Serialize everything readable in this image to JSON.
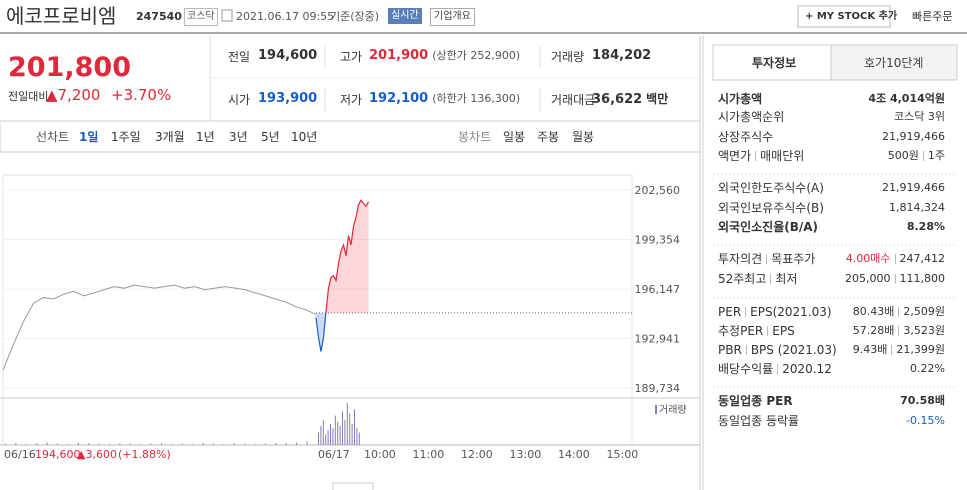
{
  "header": {
    "name": "에코프로비엠",
    "code": "247540",
    "market": "코스닥",
    "datetime": "2021.06.17 09:55",
    "basis": "기준(장중)",
    "realtime": "실시간",
    "company_info": "기업개요",
    "my_stock": "+ MY STOCK 추가",
    "quick_order": "빠른주문"
  },
  "quote": {
    "price": "201,800",
    "change_label": "전일대비",
    "change": "▲7,200",
    "change_rate": "+3.70%",
    "stats": [
      {
        "label": "전일",
        "value": "194,600"
      },
      {
        "label": "고가",
        "value": "201,900",
        "note": "(상한가 252,900)"
      },
      {
        "label": "거래량",
        "value": "184,202"
      },
      {
        "label": "시가",
        "value": "193,900"
      },
      {
        "label": "저가",
        "value": "192,100",
        "note": "(하한가 136,300)"
      },
      {
        "label": "거래대금",
        "value": "36,622",
        "unit": "백만"
      }
    ]
  },
  "chart_tabs": {
    "line_label": "선차트",
    "line_periods": [
      "1일",
      "1주일",
      "3개월",
      "1년",
      "3년",
      "5년",
      "10년"
    ],
    "candle_label": "봉차트",
    "candle_periods": [
      "일봉",
      "주봉",
      "월봉"
    ]
  },
  "chart_data": {
    "type": "line",
    "ylim": [
      189281,
      203531
    ],
    "yticks": [
      {
        "value": 202560,
        "label": "202,560"
      },
      {
        "value": 199354,
        "label": "199,354"
      },
      {
        "value": 196147,
        "label": "196,147"
      },
      {
        "value": 192941,
        "label": "192,941"
      },
      {
        "value": 189734,
        "label": "189,734"
      }
    ],
    "baseline": 194600,
    "series": [
      {
        "color": "#999999",
        "values": [
          190900,
          192500,
          194000,
          195200,
          195600,
          195500,
          195800,
          196000,
          195700,
          195900,
          196100,
          196300,
          196200,
          196400,
          196300,
          196200,
          196300,
          196400,
          196200,
          196300,
          196100,
          196200,
          196300,
          196200,
          196100,
          195900,
          195700,
          195500,
          195300,
          195000,
          194800,
          194500
        ]
      },
      {
        "color": "#e0283a",
        "values": [
          194300,
          193000,
          192100,
          193000,
          194700,
          196200,
          196900,
          197000,
          196700,
          197800,
          198600,
          199000,
          198300,
          199600,
          199000,
          200200,
          200800,
          201600,
          201900,
          201700,
          201500,
          201800
        ]
      }
    ],
    "volume": {
      "label": "거래량",
      "values": [
        3,
        5,
        2,
        4,
        6,
        3,
        2,
        5,
        4,
        3,
        2,
        4,
        3,
        2,
        3,
        4,
        2,
        3,
        2,
        5,
        3,
        2,
        4,
        3,
        2,
        3,
        5,
        4,
        6,
        8
      ],
      "today_values": [
        30,
        45,
        60,
        25,
        35,
        50,
        40,
        70,
        55,
        45,
        80,
        60,
        100,
        75,
        50,
        85,
        40,
        30
      ]
    },
    "prev_day": {
      "date": "06/16",
      "close": "194,600",
      "change": "▲3,600",
      "rate": "(+1.88%)"
    },
    "x_labels": [
      "06/17",
      "10:00",
      "11:00",
      "12:00",
      "13:00",
      "14:00",
      "15:00"
    ]
  },
  "invest_info": {
    "tabs": [
      "투자정보",
      "호가10단계"
    ],
    "groups": [
      [
        {
          "labels": [
            "시가총액"
          ],
          "values": [
            "4조 4,014억원"
          ]
        },
        {
          "labels": [
            "시가총액순위"
          ],
          "values": [
            "코스닥 3위"
          ]
        },
        {
          "labels": [
            "상장주식수"
          ],
          "values": [
            "21,919,466"
          ]
        },
        {
          "labels": [
            "액면가",
            "매매단위"
          ],
          "values": [
            "500원",
            "1주"
          ]
        }
      ],
      [
        {
          "labels": [
            "외국인한도주식수(A)"
          ],
          "values": [
            "21,919,466"
          ]
        },
        {
          "labels": [
            "외국인보유주식수(B)"
          ],
          "values": [
            "1,814,324"
          ]
        },
        {
          "labels": [
            "외국인소진율(B/A)"
          ],
          "values": [
            "8.28%"
          ]
        }
      ],
      [
        {
          "labels": [
            "투자의견",
            "목표주가"
          ],
          "values": [
            "4.00매수",
            "247,412"
          ]
        },
        {
          "labels": [
            "52주최고",
            "최저"
          ],
          "values": [
            "205,000",
            "111,800"
          ]
        }
      ],
      [
        {
          "labels": [
            "PER",
            "EPS(2021.03)"
          ],
          "values": [
            "80.43배",
            "2,509원"
          ]
        },
        {
          "labels": [
            "추정PER",
            "EPS"
          ],
          "values": [
            "57.28배",
            "3,523원"
          ]
        },
        {
          "labels": [
            "PBR",
            "BPS (2021.03)"
          ],
          "values": [
            "9.43배",
            "21,399원"
          ]
        },
        {
          "labels": [
            "배당수익률",
            "2020.12"
          ],
          "values": [
            "0.22%"
          ]
        }
      ],
      [
        {
          "labels": [
            "동일업종 PER"
          ],
          "values": [
            "70.58배"
          ]
        },
        {
          "labels": [
            "동일업종 등락률"
          ],
          "values": [
            "-0.15%"
          ]
        }
      ]
    ]
  }
}
